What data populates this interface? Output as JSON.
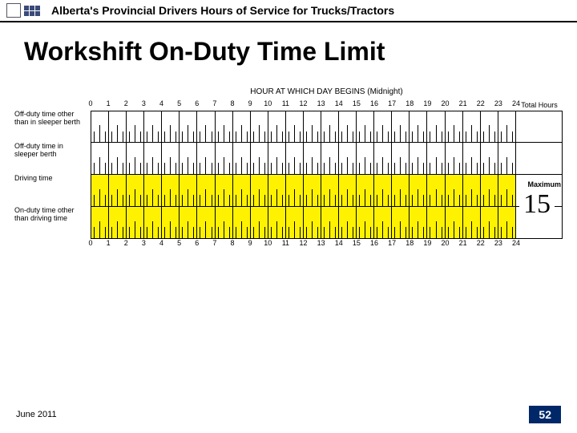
{
  "header": {
    "title": "Alberta's Provincial Drivers Hours of Service for Trucks/Tractors"
  },
  "main_title": "Workshift On-Duty Time Limit",
  "logsheet": {
    "caption": "HOUR AT WHICH DAY BEGINS (Midnight)",
    "hour_labels_top": [
      "0",
      "1",
      "2",
      "3",
      "4",
      "5",
      "6",
      "7",
      "8",
      "9",
      "10",
      "11",
      "12",
      "13",
      "14",
      "15",
      "16",
      "17",
      "18",
      "19",
      "20",
      "21",
      "22",
      "23",
      "24"
    ],
    "hour_labels_bottom": [
      "0",
      "1",
      "2",
      "3",
      "4",
      "5",
      "6",
      "7",
      "8",
      "9",
      "10",
      "11",
      "12",
      "13",
      "14",
      "15",
      "16",
      "17",
      "18",
      "19",
      "20",
      "21",
      "22",
      "23",
      "24"
    ],
    "total_hours_label": "Total Hours",
    "rows": [
      {
        "label": "Off-duty time other than in sleeper berth",
        "color": "#ffffff"
      },
      {
        "label": "Off-duty time in sleeper berth",
        "color": "#ffffff"
      },
      {
        "label": "Driving time",
        "color": "#fff200"
      },
      {
        "label": "On-duty time other than driving time",
        "color": "#fff200"
      }
    ],
    "maximum_label": "Maximum",
    "limit_value": "15",
    "hours": 24,
    "track_border_color": "#000000",
    "tick_color": "#000000"
  },
  "footer": {
    "date": "June 2011",
    "page": "52",
    "page_bg": "#002868",
    "page_fg": "#ffffff"
  }
}
